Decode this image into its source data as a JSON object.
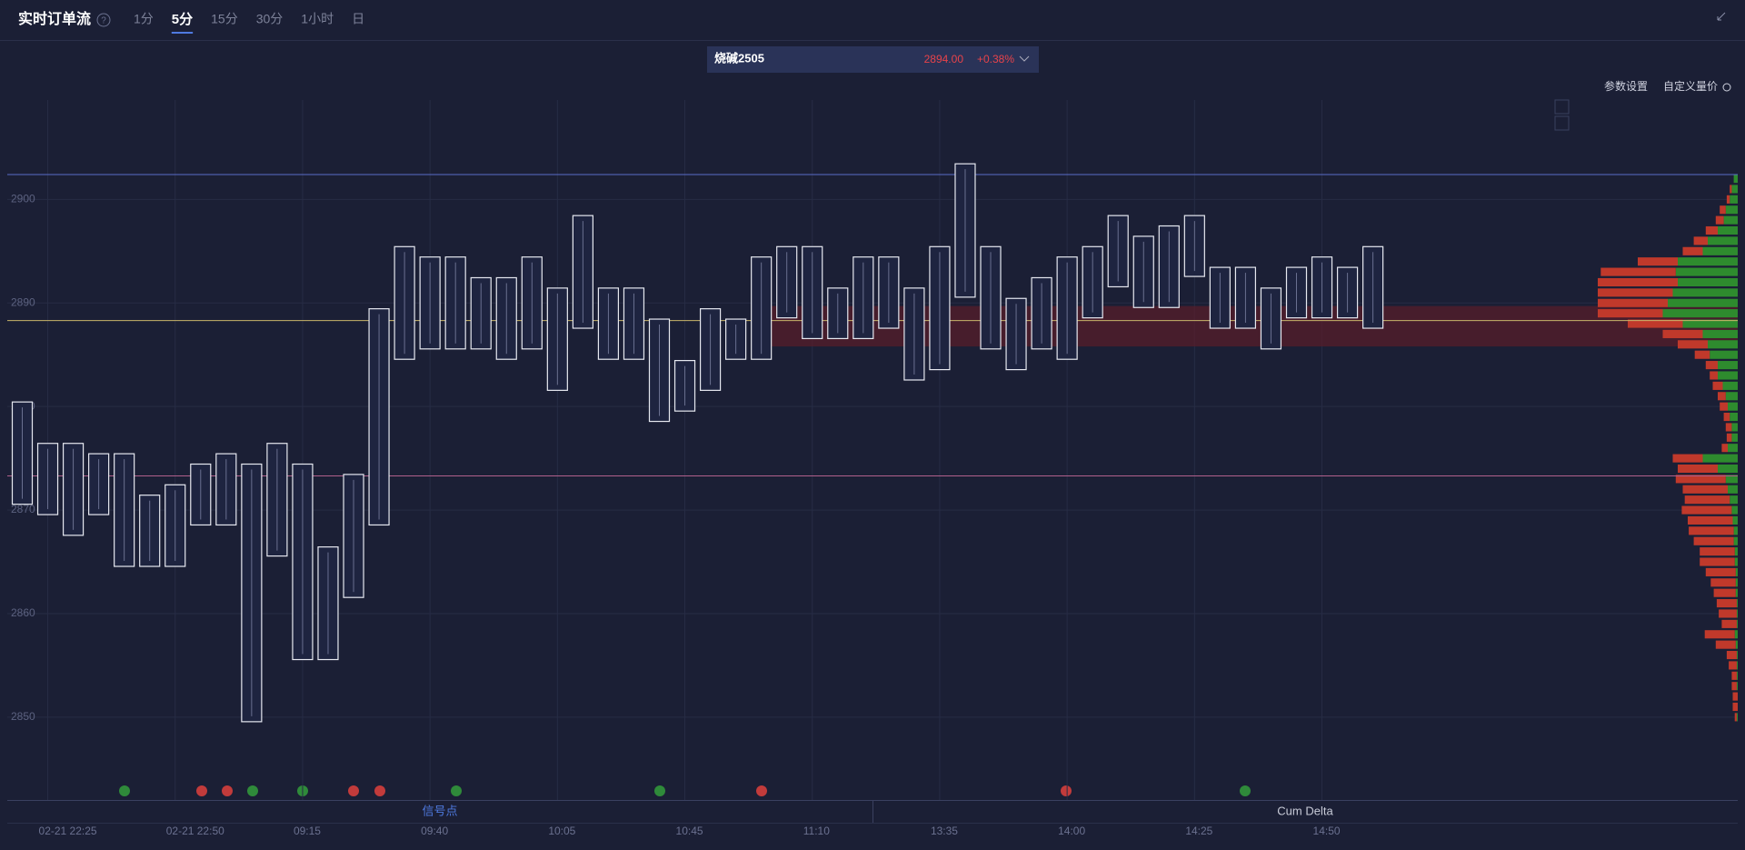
{
  "header": {
    "title": "实时订单流",
    "tabs": [
      "1分",
      "5分",
      "15分",
      "30分",
      "1小时",
      "日"
    ],
    "active_tab": 1
  },
  "symbol": {
    "name": "烧碱2505",
    "price": "2894.00",
    "change": "+0.38%"
  },
  "toolbar": [
    "参数设置",
    "自定义量价"
  ],
  "bottom_tabs": [
    "信号点",
    "Cum Delta"
  ],
  "chart_data": {
    "type": "footprint",
    "categories": [
      null,
      "02-21 22:25",
      null,
      null,
      null,
      null,
      "02-21 22:50",
      null,
      null,
      null,
      null,
      "09:15",
      null,
      null,
      null,
      null,
      "09:40",
      null,
      null,
      null,
      null,
      "10:05",
      null,
      null,
      null,
      null,
      "10:45",
      null,
      null,
      null,
      null,
      "11:10",
      null,
      null,
      null,
      null,
      "13:35",
      null,
      null,
      null,
      null,
      "14:00",
      null,
      null,
      null,
      null,
      "14:25",
      null,
      null,
      null,
      null,
      "14:50",
      null,
      null
    ],
    "high": [
      2880,
      2876,
      2876,
      2875,
      2875,
      2871,
      2872,
      2874,
      2875,
      2874,
      2876,
      2874,
      2866,
      2873,
      2889,
      2895,
      2894,
      2894,
      2892,
      2892,
      2894,
      2891,
      2898,
      2891,
      2891,
      2888,
      2884,
      2889,
      2888,
      2894,
      2895,
      2895,
      2891,
      2894,
      2894,
      2891,
      2895,
      2903,
      2895,
      2890,
      2892,
      2894,
      2895,
      2898,
      2896,
      2897,
      2898,
      2893,
      2893,
      2891,
      2893,
      2894,
      2893,
      2895
    ],
    "low": [
      2871,
      2870,
      2868,
      2870,
      2865,
      2865,
      2865,
      2869,
      2869,
      2850,
      2866,
      2856,
      2856,
      2862,
      2869,
      2885,
      2886,
      2886,
      2886,
      2885,
      2886,
      2882,
      2888,
      2885,
      2885,
      2879,
      2880,
      2882,
      2885,
      2885,
      2889,
      2887,
      2887,
      2887,
      2888,
      2883,
      2884,
      2891,
      2886,
      2884,
      2886,
      2885,
      2889,
      2892,
      2890,
      2890,
      2893,
      2888,
      2888,
      2886,
      2889,
      2889,
      2889,
      2888
    ],
    "ylim": [
      2842,
      2909.6
    ],
    "yticks": [
      2850,
      2860,
      2870,
      2880,
      2890,
      2900
    ],
    "grid": true,
    "levels": [
      {
        "value": 2902.4,
        "color": "#5a6cc8"
      },
      {
        "value": 2888.3,
        "color": "#c9b46a"
      },
      {
        "value": 2873.3,
        "color": "#b0608c"
      }
    ],
    "band": [
      2885.8,
      2889.7
    ],
    "profile": {
      "prices": [
        2902,
        2901,
        2900,
        2899,
        2898,
        2897,
        2896,
        2895,
        2894,
        2893,
        2892,
        2891,
        2890,
        2889,
        2888,
        2887,
        2886,
        2885,
        2884,
        2883,
        2882,
        2881,
        2880,
        2879,
        2878,
        2877,
        2876,
        2875,
        2874,
        2873,
        2872,
        2871,
        2870,
        2869,
        2868,
        2867,
        2866,
        2865,
        2864,
        2863,
        2862,
        2861,
        2860,
        2859,
        2858,
        2857,
        2856,
        2855,
        2854,
        2853,
        2852,
        2851,
        2850
      ],
      "buy": [
        4,
        6,
        8,
        12,
        14,
        20,
        30,
        35,
        60,
        62,
        60,
        65,
        70,
        75,
        55,
        35,
        30,
        28,
        20,
        20,
        15,
        12,
        10,
        8,
        6,
        6,
        10,
        35,
        20,
        12,
        10,
        8,
        6,
        5,
        4,
        4,
        3,
        3,
        2,
        2,
        2,
        1,
        1,
        1,
        3,
        2,
        1,
        1,
        1,
        1,
        0,
        0,
        1
      ],
      "sell": [
        0,
        2,
        3,
        6,
        8,
        12,
        14,
        20,
        40,
        75,
        80,
        75,
        70,
        65,
        55,
        40,
        30,
        15,
        12,
        8,
        10,
        8,
        8,
        6,
        6,
        5,
        6,
        30,
        40,
        50,
        45,
        45,
        50,
        45,
        45,
        40,
        35,
        35,
        30,
        25,
        22,
        20,
        18,
        15,
        30,
        20,
        10,
        8,
        5,
        5,
        5,
        5,
        2
      ],
      "buy_color": "#2e8b2e",
      "sell_color": "#c0392b"
    }
  }
}
